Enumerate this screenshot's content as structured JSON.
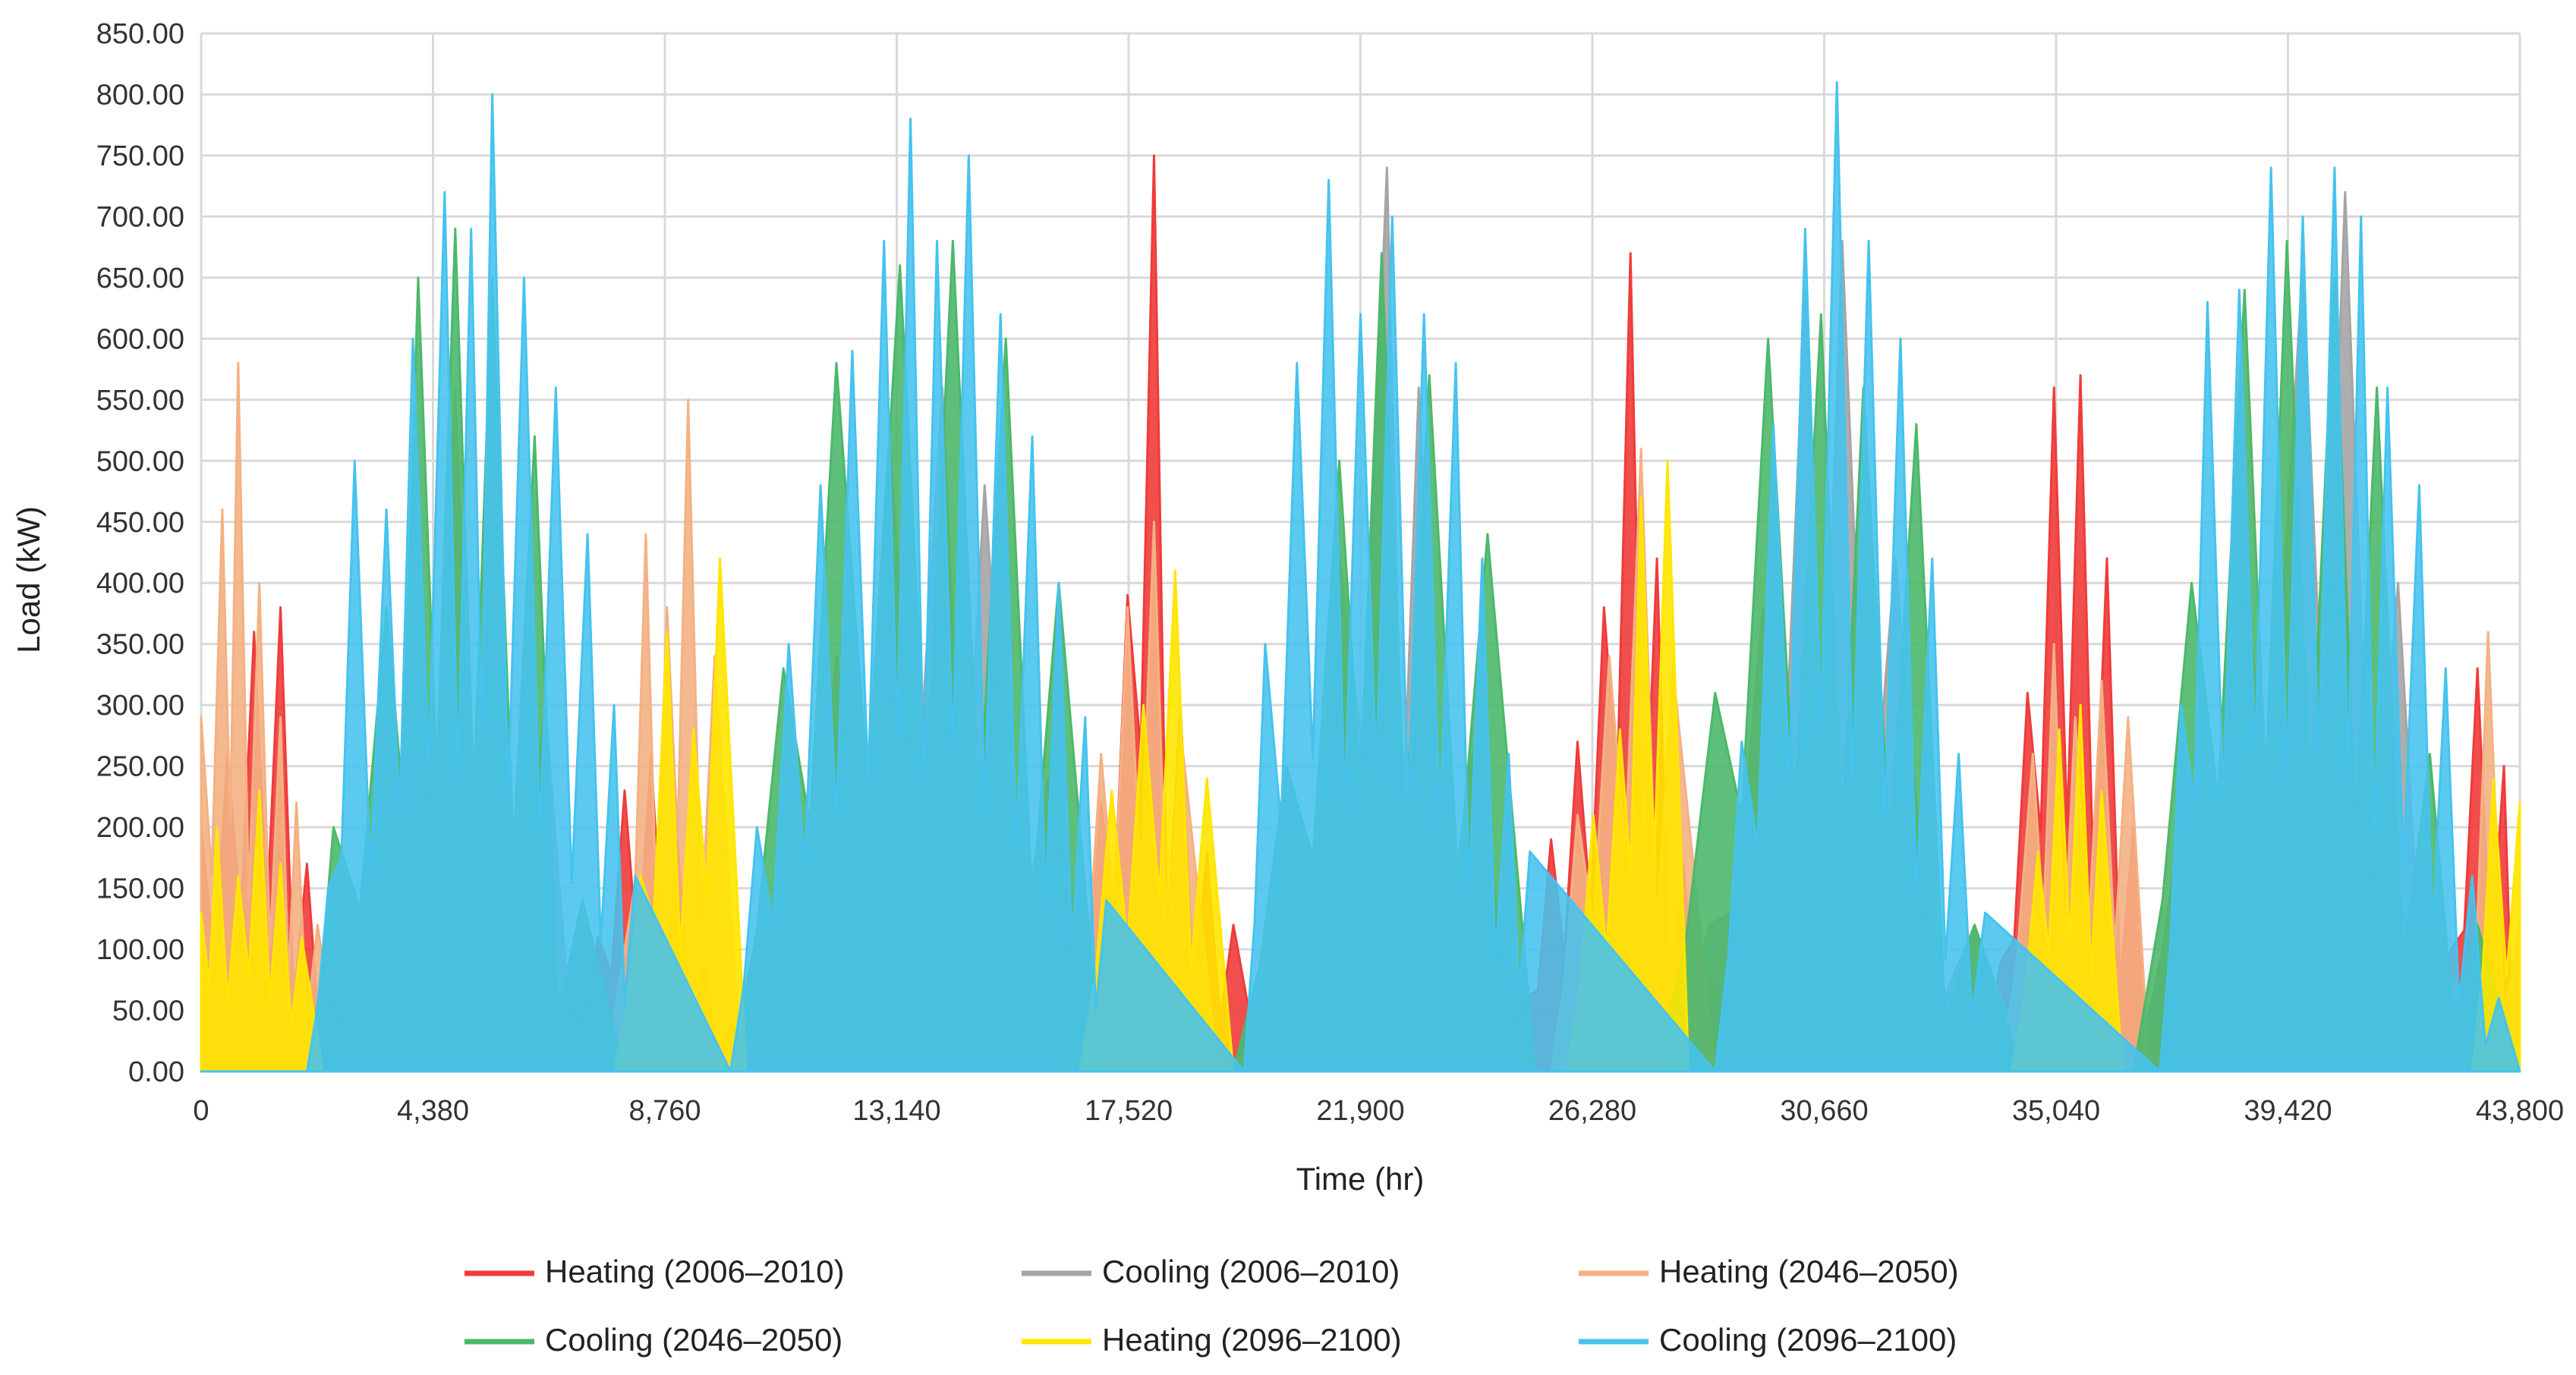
{
  "chart_data": {
    "type": "area",
    "xlabel": "Time (hr)",
    "ylabel": "Load (kW)",
    "xlim": [
      0,
      43800
    ],
    "ylim": [
      0,
      850
    ],
    "x_ticks": [
      0,
      4380,
      8760,
      13140,
      17520,
      21900,
      26280,
      30660,
      35040,
      39420,
      43800
    ],
    "x_tick_labels": [
      "0",
      "4,380",
      "8,760",
      "13,140",
      "17,520",
      "21,900",
      "26,280",
      "30,660",
      "35,040",
      "39,420",
      "43,800"
    ],
    "y_ticks": [
      0,
      50,
      100,
      150,
      200,
      250,
      300,
      350,
      400,
      450,
      500,
      550,
      600,
      650,
      700,
      750,
      800,
      850
    ],
    "y_tick_labels": [
      "0.00",
      "50.00",
      "100.00",
      "150.00",
      "200.00",
      "250.00",
      "300.00",
      "350.00",
      "400.00",
      "450.00",
      "500.00",
      "550.00",
      "600.00",
      "650.00",
      "700.00",
      "750.00",
      "800.00",
      "850.00"
    ],
    "grid": true,
    "legend_position": "bottom",
    "series": [
      {
        "name": "Heating (2006–2010)",
        "color": "#EF3B3B",
        "x": [
          0,
          500,
          1000,
          1500,
          2000,
          2500,
          3000,
          6500,
          7000,
          7500,
          8000,
          8500,
          9000,
          9500,
          10000,
          10500,
          11000,
          15500,
          16000,
          16500,
          17000,
          17500,
          18000,
          18500,
          19000,
          19500,
          20000,
          24500,
          25000,
          25500,
          26000,
          26500,
          27000,
          27500,
          28000,
          28500,
          29000,
          33500,
          34000,
          34500,
          35000,
          35500,
          36000,
          36500,
          37000,
          37500,
          42000,
          42500,
          43000,
          43500,
          43800
        ],
        "values": [
          200,
          260,
          360,
          380,
          170,
          60,
          0,
          0,
          50,
          110,
          230,
          260,
          190,
          90,
          40,
          0,
          0,
          0,
          40,
          130,
          220,
          390,
          750,
          300,
          180,
          120,
          0,
          0,
          60,
          190,
          270,
          380,
          670,
          420,
          170,
          80,
          0,
          0,
          90,
          310,
          560,
          570,
          420,
          200,
          90,
          0,
          0,
          100,
          330,
          250,
          120
        ]
      },
      {
        "name": "Cooling (2006–2010)",
        "color": "#A5A5A5",
        "x": [
          0,
          2000,
          2500,
          3500,
          4000,
          4800,
          5500,
          6500,
          7500,
          8000,
          10000,
          11000,
          12000,
          13000,
          14000,
          14800,
          16000,
          17000,
          19500,
          20500,
          21500,
          22400,
          23000,
          24000,
          25000,
          27500,
          28500,
          29500,
          30300,
          31000,
          32000,
          33500,
          34500,
          36500,
          37500,
          38500,
          39700,
          40500,
          41500,
          42500,
          43800
        ],
        "values": [
          0,
          0,
          20,
          150,
          350,
          560,
          450,
          300,
          60,
          0,
          0,
          120,
          340,
          520,
          560,
          480,
          240,
          0,
          0,
          130,
          420,
          740,
          560,
          260,
          0,
          0,
          120,
          380,
          640,
          680,
          420,
          120,
          0,
          0,
          240,
          420,
          660,
          720,
          400,
          80,
          0
        ]
      },
      {
        "name": "Heating (2046–2050)",
        "color": "#F4B183",
        "x": [
          0,
          400,
          700,
          1100,
          1500,
          1800,
          2200,
          2600,
          7500,
          8000,
          8400,
          8800,
          9200,
          9700,
          10200,
          16000,
          16500,
          17000,
          17500,
          18000,
          18500,
          19200,
          25500,
          26000,
          26600,
          27200,
          27800,
          28600,
          34000,
          34600,
          35000,
          35400,
          35900,
          36400,
          36800,
          42800,
          43200,
          43800
        ],
        "values": [
          290,
          460,
          580,
          400,
          290,
          220,
          120,
          0,
          0,
          100,
          440,
          380,
          550,
          340,
          0,
          0,
          150,
          260,
          380,
          450,
          280,
          0,
          0,
          210,
          340,
          510,
          330,
          0,
          0,
          260,
          350,
          290,
          320,
          290,
          0,
          0,
          360,
          120
        ]
      },
      {
        "name": "Cooling (2046–2050)",
        "color": "#4CB86B",
        "x": [
          0,
          2000,
          2500,
          3500,
          4100,
          4800,
          5500,
          6300,
          7200,
          8000,
          10000,
          11000,
          12000,
          13200,
          14200,
          15200,
          16200,
          17000,
          19500,
          20500,
          21500,
          22300,
          23200,
          24300,
          25200,
          27500,
          28600,
          29600,
          30600,
          31400,
          32400,
          33500,
          34400,
          36500,
          37600,
          38600,
          39400,
          40300,
          41100,
          42100,
          43000,
          43800
        ],
        "values": [
          0,
          0,
          200,
          380,
          650,
          690,
          650,
          520,
          140,
          0,
          0,
          330,
          580,
          660,
          680,
          600,
          400,
          0,
          0,
          250,
          500,
          670,
          570,
          440,
          0,
          0,
          310,
          600,
          620,
          560,
          530,
          120,
          0,
          0,
          400,
          640,
          680,
          650,
          560,
          260,
          120,
          0
        ]
      },
      {
        "name": "Heating (2096–2100)",
        "color": "#FFE600",
        "x": [
          0,
          300,
          700,
          1100,
          1500,
          1900,
          2300,
          7800,
          8300,
          8800,
          9300,
          9800,
          10300,
          16600,
          17200,
          17800,
          18400,
          19000,
          19500,
          25800,
          26300,
          26800,
          27200,
          27700,
          28100,
          34200,
          34700,
          35100,
          35500,
          35900,
          36300,
          42900,
          43300,
          43800
        ],
        "values": [
          130,
          200,
          160,
          230,
          170,
          110,
          0,
          0,
          160,
          360,
          280,
          420,
          0,
          0,
          230,
          300,
          410,
          240,
          0,
          0,
          210,
          280,
          470,
          500,
          0,
          0,
          180,
          280,
          300,
          230,
          0,
          0,
          240,
          220
        ]
      },
      {
        "name": "Cooling (2096–2100)",
        "color": "#45C3EE",
        "x": [
          0,
          2000,
          2400,
          2900,
          3500,
          4000,
          4600,
          5100,
          5500,
          6100,
          6700,
          7300,
          7800,
          8200,
          10000,
          10500,
          11100,
          11700,
          12300,
          12900,
          13400,
          13900,
          14500,
          15100,
          15700,
          16200,
          16700,
          17100,
          19700,
          20100,
          20700,
          21300,
          21900,
          22500,
          23100,
          23700,
          24200,
          24700,
          25100,
          28600,
          29100,
          29700,
          30300,
          30900,
          31500,
          32100,
          32700,
          33200,
          33700,
          37000,
          37400,
          37900,
          38500,
          39100,
          39700,
          40300,
          40800,
          41300,
          41900,
          42400,
          42900,
          43400,
          43800
        ],
        "values": [
          0,
          0,
          150,
          500,
          460,
          600,
          720,
          690,
          800,
          650,
          560,
          440,
          300,
          160,
          0,
          200,
          350,
          480,
          590,
          680,
          780,
          680,
          750,
          620,
          520,
          400,
          290,
          140,
          0,
          350,
          580,
          730,
          620,
          700,
          620,
          580,
          420,
          260,
          180,
          0,
          270,
          530,
          690,
          810,
          680,
          600,
          420,
          260,
          130,
          0,
          300,
          630,
          640,
          740,
          700,
          740,
          700,
          560,
          480,
          330,
          160,
          60,
          0
        ]
      }
    ]
  }
}
